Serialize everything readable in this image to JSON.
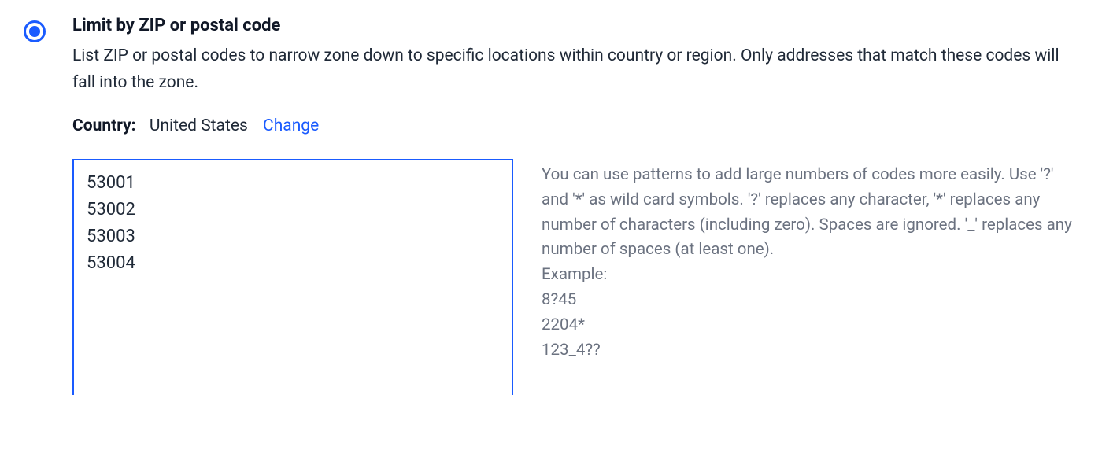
{
  "option": {
    "title": "Limit by ZIP or postal code",
    "description": "List ZIP or postal codes to narrow zone down to specific locations within country or region. Only addresses that match these codes will fall into the zone.",
    "selected": true
  },
  "country": {
    "label": "Country:",
    "value": "United States",
    "change_label": "Change"
  },
  "codes": {
    "value": "53001\n53002\n53003\n53004"
  },
  "help": {
    "intro": "You can use patterns to add large numbers of codes more easily. Use '?' and '*' as wild card symbols. '?' replaces any character, '*' replaces any number of characters (including zero). Spaces are ignored. '_' replaces any number of spaces (at least one).",
    "example_label": "Example:",
    "example_1": "8?45",
    "example_2": "2204*",
    "example_3": "123_4??"
  },
  "colors": {
    "accent": "#1a5bff",
    "text": "#1f2937",
    "title": "#111827",
    "muted": "#6b7280",
    "background": "#ffffff"
  }
}
